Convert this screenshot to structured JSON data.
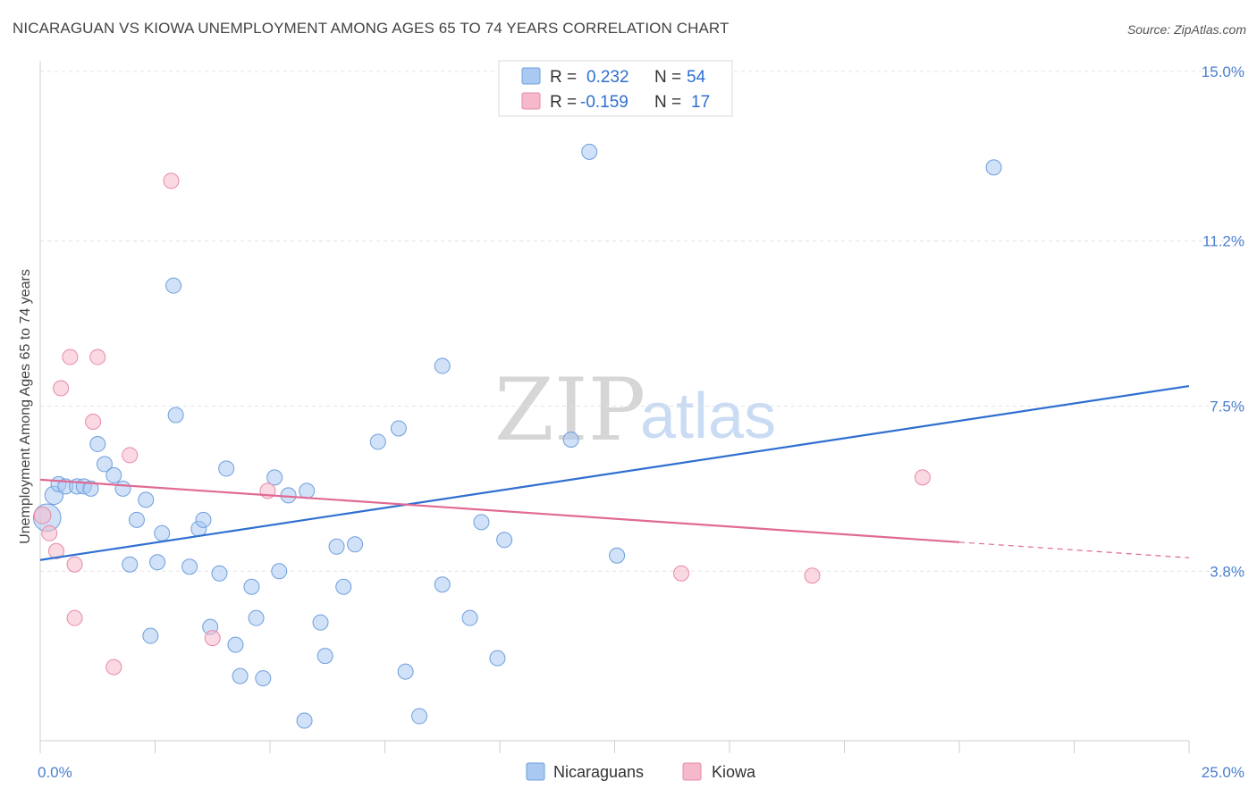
{
  "title": "NICARAGUAN VS KIOWA UNEMPLOYMENT AMONG AGES 65 TO 74 YEARS CORRELATION CHART",
  "source": "Source: ZipAtlas.com",
  "watermark": {
    "zip": "ZIP",
    "atlas": "atlas"
  },
  "legend": {
    "rows": [
      {
        "r_label": "R =",
        "r_value": "0.232",
        "n_label": "N =",
        "n_value": "54",
        "color": "#a9c8f2"
      },
      {
        "r_label": "R =",
        "r_value": "-0.159",
        "n_label": "N =",
        "n_value": "17",
        "color": "#f6b9cb"
      }
    ]
  },
  "bottom_legend": [
    {
      "label": "Nicaraguans",
      "color": "#a9c8f2"
    },
    {
      "label": "Kiowa",
      "color": "#f6b9cb"
    }
  ],
  "chart_data": {
    "type": "scatter",
    "ylabel": "Unemployment Among Ages 65 to 74 years",
    "xlim": [
      0,
      25
    ],
    "ylim": [
      0,
      15
    ],
    "x_tick_labels": [
      {
        "value": 0,
        "label": "0.0%"
      },
      {
        "value": 25,
        "label": "25.0%"
      }
    ],
    "y_tick_labels": [
      {
        "value": 15.0,
        "label": "15.0%"
      },
      {
        "value": 11.2,
        "label": "11.2%"
      },
      {
        "value": 7.5,
        "label": "7.5%"
      },
      {
        "value": 3.8,
        "label": "3.8%"
      }
    ],
    "grid": true,
    "series": [
      {
        "name": "Nicaraguans",
        "color": "#a9c8f2",
        "stroke": "#6f9fdd",
        "trend": {
          "x0": 0,
          "y0": 4.05,
          "x1": 25,
          "y1": 7.95,
          "color": "#2f6fd0"
        },
        "points": [
          [
            0.15,
            5.0,
            1.8
          ],
          [
            0.3,
            5.5,
            1.2
          ],
          [
            0.4,
            5.75,
            1
          ],
          [
            0.55,
            5.7,
            1
          ],
          [
            0.8,
            5.7,
            1
          ],
          [
            0.95,
            5.7,
            1
          ],
          [
            1.1,
            5.65,
            1
          ],
          [
            1.25,
            6.65,
            1
          ],
          [
            1.4,
            6.2,
            1
          ],
          [
            1.6,
            5.95,
            1
          ],
          [
            1.8,
            5.65,
            1
          ],
          [
            2.1,
            4.95,
            1
          ],
          [
            2.3,
            5.4,
            1
          ],
          [
            1.95,
            3.95,
            1
          ],
          [
            2.55,
            4.0,
            1
          ],
          [
            2.65,
            4.65,
            1
          ],
          [
            2.4,
            2.35,
            1
          ],
          [
            2.9,
            10.2,
            1
          ],
          [
            2.95,
            7.3,
            1
          ],
          [
            3.25,
            3.9,
            1
          ],
          [
            3.45,
            4.75,
            1
          ],
          [
            3.55,
            4.95,
            1
          ],
          [
            3.7,
            2.55,
            1
          ],
          [
            3.9,
            3.75,
            1
          ],
          [
            4.05,
            6.1,
            1
          ],
          [
            4.25,
            2.15,
            1
          ],
          [
            4.35,
            1.45,
            1
          ],
          [
            4.6,
            3.45,
            1
          ],
          [
            4.7,
            2.75,
            1
          ],
          [
            4.85,
            1.4,
            1
          ],
          [
            5.1,
            5.9,
            1
          ],
          [
            5.2,
            3.8,
            1
          ],
          [
            5.4,
            5.5,
            1
          ],
          [
            5.8,
            5.6,
            1
          ],
          [
            5.75,
            0.45,
            1
          ],
          [
            6.1,
            2.65,
            1
          ],
          [
            6.2,
            1.9,
            1
          ],
          [
            6.45,
            4.35,
            1
          ],
          [
            6.6,
            3.45,
            1
          ],
          [
            6.85,
            4.4,
            1
          ],
          [
            7.35,
            6.7,
            1
          ],
          [
            7.8,
            7.0,
            1
          ],
          [
            7.95,
            1.55,
            1
          ],
          [
            8.25,
            0.55,
            1
          ],
          [
            8.75,
            3.5,
            1
          ],
          [
            8.75,
            8.4,
            1
          ],
          [
            9.35,
            2.75,
            1
          ],
          [
            9.6,
            4.9,
            1
          ],
          [
            9.95,
            1.85,
            1
          ],
          [
            10.1,
            4.5,
            1
          ],
          [
            11.55,
            6.75,
            1
          ],
          [
            11.95,
            13.2,
            1
          ],
          [
            12.55,
            4.15,
            1
          ],
          [
            20.75,
            12.85,
            1
          ]
        ]
      },
      {
        "name": "Kiowa",
        "color": "#f6b9cb",
        "stroke": "#e88aa7",
        "trend": {
          "x0": 0,
          "y0": 5.85,
          "x1": 20,
          "y1": 4.45,
          "dash_to_x": 25,
          "dash_to_y": 4.1,
          "color": "#e06a93"
        },
        "points": [
          [
            0.05,
            5.05,
            1.1
          ],
          [
            0.2,
            4.65,
            1
          ],
          [
            0.35,
            4.25,
            1
          ],
          [
            0.45,
            7.9,
            1
          ],
          [
            0.65,
            8.6,
            1
          ],
          [
            0.75,
            3.95,
            1
          ],
          [
            0.75,
            2.75,
            1
          ],
          [
            1.15,
            7.15,
            1
          ],
          [
            1.25,
            8.6,
            1
          ],
          [
            1.6,
            1.65,
            1
          ],
          [
            1.95,
            6.4,
            1
          ],
          [
            2.85,
            12.55,
            1
          ],
          [
            3.75,
            2.3,
            1
          ],
          [
            4.95,
            5.6,
            1
          ],
          [
            13.95,
            3.75,
            1
          ],
          [
            16.8,
            3.7,
            1
          ],
          [
            19.2,
            5.9,
            1
          ]
        ]
      }
    ]
  }
}
